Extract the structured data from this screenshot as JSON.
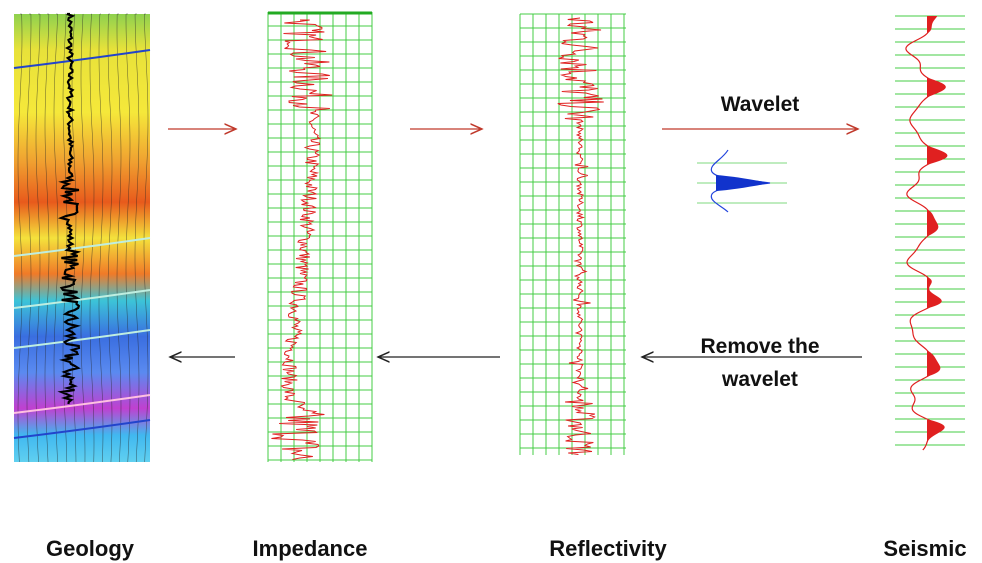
{
  "panels": [
    {
      "label": "Geology"
    },
    {
      "label": "Impedance"
    },
    {
      "label": "Reflectivity"
    },
    {
      "label": "Seismic"
    }
  ],
  "arrows": {
    "forward_label": "Wavelet",
    "inverse_label": [
      "Remove the",
      "wavelet"
    ]
  }
}
